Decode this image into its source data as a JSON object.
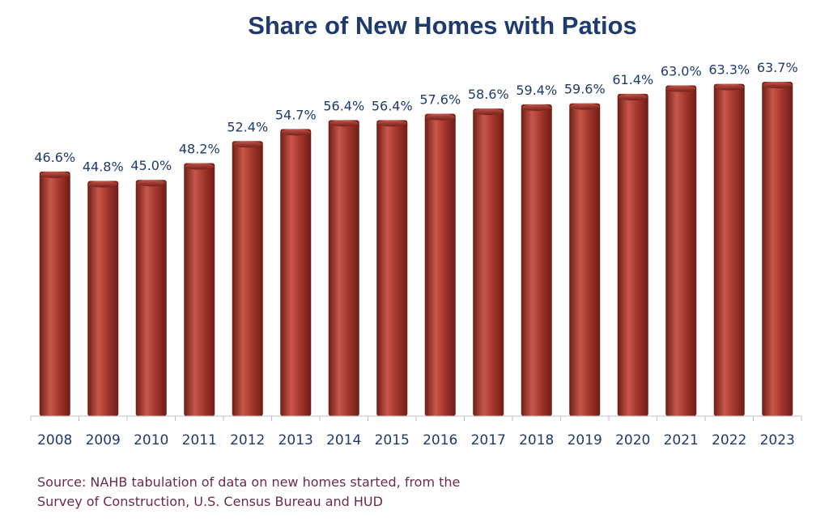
{
  "chart_data": {
    "type": "bar",
    "title": "Share of New Homes with Patios",
    "categories": [
      "2008",
      "2009",
      "2010",
      "2011",
      "2012",
      "2013",
      "2014",
      "2015",
      "2016",
      "2017",
      "2018",
      "2019",
      "2020",
      "2021",
      "2022",
      "2023"
    ],
    "values": [
      46.6,
      44.8,
      45.0,
      48.2,
      52.4,
      54.7,
      56.4,
      56.4,
      57.6,
      58.6,
      59.4,
      59.6,
      61.4,
      63.0,
      63.3,
      63.7
    ],
    "data_labels": [
      "46.6%",
      "44.8%",
      "45.0%",
      "48.2%",
      "52.4%",
      "54.7%",
      "56.4%",
      "56.4%",
      "57.6%",
      "58.6%",
      "59.4%",
      "59.6%",
      "61.4%",
      "63.0%",
      "63.3%",
      "63.7%"
    ],
    "unit": "%",
    "xlabel": "",
    "ylabel": "",
    "ylim": [
      0,
      63.7
    ],
    "grid": false,
    "legend": "none"
  },
  "source": {
    "line1": "Source: NAHB tabulation of data on new homes started, from the",
    "line2": "Survey of Construction, U.S. Census Bureau and HUD"
  },
  "colors": {
    "bar": "#a3352b",
    "bar_dark": "#6e1d16",
    "bar_light": "#c7574a",
    "title": "#1f3b6e",
    "labels": "#1f3b6e",
    "source": "#6b2b4b",
    "axis": "#bfbfbf"
  }
}
